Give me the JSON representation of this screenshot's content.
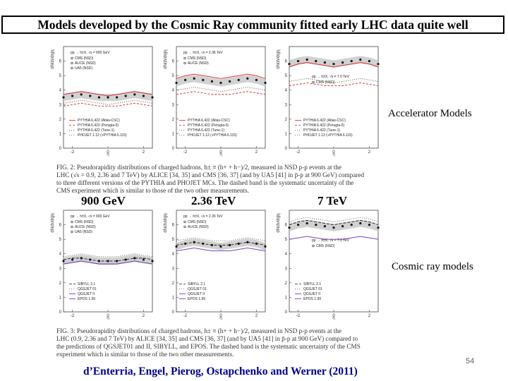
{
  "slide": {
    "title": "Models developed by the Cosmic Ray community fitted early LHC data quite well",
    "page_number": "54",
    "credit": "d’Enterria, Engel, Pierog, Ostapchenko and Werner (2011)",
    "accelerator_label": "Accelerator Models",
    "cosmic_label": "Cosmic ray models",
    "energies": [
      "900 GeV",
      "2.36 TeV",
      "7 TeV"
    ]
  },
  "fig2": {
    "caption": [
      "FIG. 2: Pseudorapidity distributions of charged hadrons, h± ≡ (h+ + h−)/2, measured in NSD p-p events at the",
      "LHC (√s = 0.9, 2.36 and 7 TeV) by ALICE [34, 35] and CMS [36, 37] (and by UA5 [41] in p̄-p at 900 GeV) compared",
      "to three different versions of the PYTHIA and PHOJET MCs. The dashed band is the systematic uncertainty of the",
      "CMS experiment which is similar to those of the two other measurements."
    ],
    "panels": [
      {
        "header": "pp → h±X, √s = 900 GeV",
        "data_legend": [
          "CMS (NSD)",
          "ALICE (NSD)",
          "UA5 (NSD)"
        ],
        "model_legend": [
          "PYTHIA 6.422 (Atlas-CSC)",
          "PYTHIA 6.422 (Perugia-0)",
          "PYTHIA 6.422 (Tune-1)",
          "PHOJET 1.12 (+PYTHIA 6.115)"
        ]
      },
      {
        "header": "pp → h±X, √s = 2.36 TeV",
        "data_legend": [
          "CMS (NSD)",
          "ALICE (NSD)"
        ],
        "model_legend": [
          "PYTHIA 6.422 (Atlas-CSC)",
          "PYTHIA 6.422 (Perugia-0)",
          "PYTHIA 6.422 (Tune-1)",
          "PHOJET 1.12 (+PYTHIA 6.115)"
        ]
      },
      {
        "header": "pp → h±X, √s = 7.0 TeV",
        "data_legend": [
          "CMS (NSD)"
        ],
        "model_legend": [
          "PYTHIA 6.422 (Atlas-CSC)",
          "PYTHIA 6.422 (Perugia-0)",
          "PYTHIA 6.422 (Tune-1)",
          "PHOJET 1.12 (+PYTHIA 6.115)"
        ]
      }
    ]
  },
  "fig3": {
    "caption": [
      "FIG. 3: Pseudorapidity distributions of charged hadrons, h± ≡ (h+ + h−)/2, measured in NSD p-p events at the",
      "LHC (0.9, 2.36 and 7 TeV) by ALICE [34, 35] and CMS [36, 37] (and by UA5 [41] in p̄-p at 900 GeV) compared to",
      "the predictions of QGSJET01 and II, SIBYLL, and EPOS. The dashed band is the systematic uncertainty of the CMS",
      "experiment which is similar to those of the two other measurements."
    ],
    "panels": [
      {
        "header": "pp → h±X, √s = 900 GeV",
        "data_legend": [
          "CMS (NSD)",
          "ALICE (NSD)",
          "UA5 (NSD)"
        ],
        "model_legend": [
          "SIBYLL 2.1",
          "QGSJET 01",
          "QGSJET II",
          "EPOS 1.99"
        ]
      },
      {
        "header": "pp → h±X, √s = 2.36 TeV",
        "data_legend": [
          "CMS (NSD)",
          "ALICE (NSD)"
        ],
        "model_legend": [
          "SIBYLL 2.1",
          "QGSJET 01",
          "QGSJET II",
          "EPOS 1.99"
        ]
      },
      {
        "header": "pp → h±X, √s = 7.0 TeV",
        "data_legend": [
          "CMS (NSD)"
        ],
        "model_legend": [
          "SIBYLL 2.1",
          "QGSJET 01",
          "QGSJET II",
          "EPOS 1.99"
        ]
      }
    ]
  },
  "axes": {
    "xlabel": "η",
    "ylabel": "dNch/dη|η",
    "xticks": [
      "-2",
      "0",
      "2"
    ],
    "yticks": [
      "0",
      "1",
      "2",
      "3",
      "4",
      "5",
      "6"
    ]
  },
  "colors": {
    "accent": "#00008b",
    "pythia_red": "#d22",
    "model_purple": "#6a2bb8",
    "band": "#bdbdbd"
  },
  "chart_data": [
    {
      "type": "line",
      "title": "pp → h±X, √s = 900 GeV (accelerator models)",
      "xlabel": "η",
      "ylabel": "dNch/dη",
      "xlim": [
        -2.5,
        2.5
      ],
      "ylim": [
        0,
        7
      ],
      "x": [
        -2.5,
        -2.0,
        -1.5,
        -1.0,
        -0.5,
        0,
        0.5,
        1.0,
        1.5,
        2.0,
        2.5
      ],
      "series": [
        {
          "name": "CMS (NSD)",
          "values": [
            3.5,
            3.6,
            3.7,
            3.6,
            3.5,
            3.5,
            3.5,
            3.6,
            3.7,
            3.6,
            3.5
          ]
        },
        {
          "name": "PYTHIA 6.422 (Atlas-CSC)",
          "values": [
            3.7,
            3.8,
            3.9,
            3.8,
            3.7,
            3.6,
            3.7,
            3.8,
            3.9,
            3.8,
            3.7
          ]
        },
        {
          "name": "PYTHIA 6.422 (Perugia-0)",
          "values": [
            2.9,
            3.0,
            3.1,
            3.0,
            2.9,
            2.9,
            2.9,
            3.0,
            3.1,
            3.0,
            2.9
          ]
        },
        {
          "name": "PHOJET 1.12 (+PYTHIA 6.115)",
          "values": [
            3.1,
            3.2,
            3.3,
            3.2,
            3.1,
            3.0,
            3.1,
            3.2,
            3.3,
            3.2,
            3.1
          ]
        }
      ]
    },
    {
      "type": "line",
      "title": "pp → h±X, √s = 2.36 TeV (accelerator models)",
      "xlabel": "η",
      "ylabel": "dNch/dη",
      "xlim": [
        -2.5,
        2.5
      ],
      "ylim": [
        0,
        7
      ],
      "x": [
        -2.5,
        -2.0,
        -1.5,
        -1.0,
        -0.5,
        0,
        0.5,
        1.0,
        1.5,
        2.0,
        2.5
      ],
      "series": [
        {
          "name": "CMS (NSD)",
          "values": [
            4.5,
            4.7,
            4.8,
            4.7,
            4.6,
            4.5,
            4.6,
            4.7,
            4.8,
            4.7,
            4.5
          ]
        },
        {
          "name": "PYTHIA 6.422 (Atlas-CSC)",
          "values": [
            4.8,
            5.0,
            5.1,
            5.0,
            4.9,
            4.8,
            4.9,
            5.0,
            5.1,
            5.0,
            4.8
          ]
        },
        {
          "name": "PYTHIA 6.422 (Perugia-0)",
          "values": [
            3.7,
            3.8,
            3.9,
            3.8,
            3.7,
            3.7,
            3.7,
            3.8,
            3.9,
            3.8,
            3.7
          ]
        },
        {
          "name": "PHOJET 1.12 (+PYTHIA 6.115)",
          "values": [
            4.0,
            4.1,
            4.2,
            4.1,
            4.0,
            3.9,
            4.0,
            4.1,
            4.2,
            4.1,
            4.0
          ]
        }
      ]
    },
    {
      "type": "line",
      "title": "pp → h±X, √s = 7.0 TeV (accelerator models)",
      "xlabel": "η",
      "ylabel": "dNch/dη",
      "xlim": [
        -2.5,
        2.5
      ],
      "ylim": [
        0,
        7
      ],
      "x": [
        -2.5,
        -2.0,
        -1.5,
        -1.0,
        -0.5,
        0,
        0.5,
        1.0,
        1.5,
        2.0,
        2.5
      ],
      "series": [
        {
          "name": "CMS (NSD)",
          "values": [
            5.8,
            6.0,
            6.1,
            6.0,
            5.9,
            5.8,
            5.9,
            6.0,
            6.1,
            6.0,
            5.8
          ]
        },
        {
          "name": "PYTHIA 6.422 (Atlas-CSC)",
          "values": [
            5.6,
            5.8,
            5.9,
            5.8,
            5.7,
            5.6,
            5.7,
            5.8,
            5.9,
            5.8,
            5.6
          ]
        },
        {
          "name": "PYTHIA 6.422 (Perugia-0)",
          "values": [
            4.3,
            4.4,
            4.5,
            4.4,
            4.3,
            4.3,
            4.3,
            4.4,
            4.5,
            4.4,
            4.3
          ]
        },
        {
          "name": "PHOJET 1.12 (+PYTHIA 6.115)",
          "values": [
            4.6,
            4.7,
            4.8,
            4.7,
            4.6,
            4.5,
            4.6,
            4.7,
            4.8,
            4.7,
            4.6
          ]
        }
      ]
    },
    {
      "type": "line",
      "title": "pp → h±X, √s = 900 GeV (cosmic ray models)",
      "xlabel": "η",
      "ylabel": "dNch/dη",
      "xlim": [
        -2.5,
        2.5
      ],
      "ylim": [
        0,
        7
      ],
      "x": [
        -2.5,
        -2.0,
        -1.5,
        -1.0,
        -0.5,
        0,
        0.5,
        1.0,
        1.5,
        2.0,
        2.5
      ],
      "series": [
        {
          "name": "CMS (NSD)",
          "values": [
            3.5,
            3.6,
            3.7,
            3.6,
            3.5,
            3.5,
            3.5,
            3.6,
            3.7,
            3.6,
            3.5
          ]
        },
        {
          "name": "SIBYLL 2.1",
          "values": [
            3.6,
            3.7,
            3.7,
            3.6,
            3.5,
            3.5,
            3.5,
            3.6,
            3.7,
            3.7,
            3.6
          ]
        },
        {
          "name": "QGSJET 01",
          "values": [
            3.8,
            3.9,
            4.0,
            3.9,
            3.8,
            3.8,
            3.8,
            3.9,
            4.0,
            3.9,
            3.8
          ]
        },
        {
          "name": "EPOS 1.99",
          "values": [
            3.3,
            3.4,
            3.5,
            3.4,
            3.3,
            3.3,
            3.3,
            3.4,
            3.5,
            3.4,
            3.3
          ]
        }
      ]
    },
    {
      "type": "line",
      "title": "pp → h±X, √s = 2.36 TeV (cosmic ray models)",
      "xlabel": "η",
      "ylabel": "dNch/dη",
      "xlim": [
        -2.5,
        2.5
      ],
      "ylim": [
        0,
        7
      ],
      "x": [
        -2.5,
        -2.0,
        -1.5,
        -1.0,
        -0.5,
        0,
        0.5,
        1.0,
        1.5,
        2.0,
        2.5
      ],
      "series": [
        {
          "name": "CMS (NSD)",
          "values": [
            4.5,
            4.7,
            4.8,
            4.7,
            4.6,
            4.5,
            4.6,
            4.7,
            4.8,
            4.7,
            4.5
          ]
        },
        {
          "name": "SIBYLL 2.1",
          "values": [
            4.6,
            4.7,
            4.8,
            4.7,
            4.6,
            4.6,
            4.6,
            4.7,
            4.8,
            4.7,
            4.6
          ]
        },
        {
          "name": "QGSJET 01",
          "values": [
            4.9,
            5.0,
            5.1,
            5.0,
            4.9,
            4.9,
            4.9,
            5.0,
            5.1,
            5.0,
            4.9
          ]
        },
        {
          "name": "EPOS 1.99",
          "values": [
            4.2,
            4.3,
            4.4,
            4.3,
            4.2,
            4.2,
            4.2,
            4.3,
            4.4,
            4.3,
            4.2
          ]
        }
      ]
    },
    {
      "type": "line",
      "title": "pp → h±X, √s = 7.0 TeV (cosmic ray models)",
      "xlabel": "η",
      "ylabel": "dNch/dη",
      "xlim": [
        -2.5,
        2.5
      ],
      "ylim": [
        0,
        7
      ],
      "x": [
        -2.5,
        -2.0,
        -1.5,
        -1.0,
        -0.5,
        0,
        0.5,
        1.0,
        1.5,
        2.0,
        2.5
      ],
      "series": [
        {
          "name": "CMS (NSD)",
          "values": [
            5.8,
            6.0,
            6.1,
            6.0,
            5.9,
            5.8,
            5.9,
            6.0,
            6.1,
            6.0,
            5.8
          ]
        },
        {
          "name": "SIBYLL 2.1",
          "values": [
            6.0,
            6.2,
            6.3,
            6.2,
            6.1,
            6.0,
            6.1,
            6.2,
            6.3,
            6.2,
            6.0
          ]
        },
        {
          "name": "QGSJET 01",
          "values": [
            6.2,
            6.4,
            6.5,
            6.4,
            6.3,
            6.2,
            6.3,
            6.4,
            6.5,
            6.4,
            6.2
          ]
        },
        {
          "name": "EPOS 1.99",
          "values": [
            5.0,
            5.1,
            5.2,
            5.1,
            5.0,
            5.0,
            5.0,
            5.1,
            5.2,
            5.1,
            5.0
          ]
        }
      ]
    }
  ]
}
